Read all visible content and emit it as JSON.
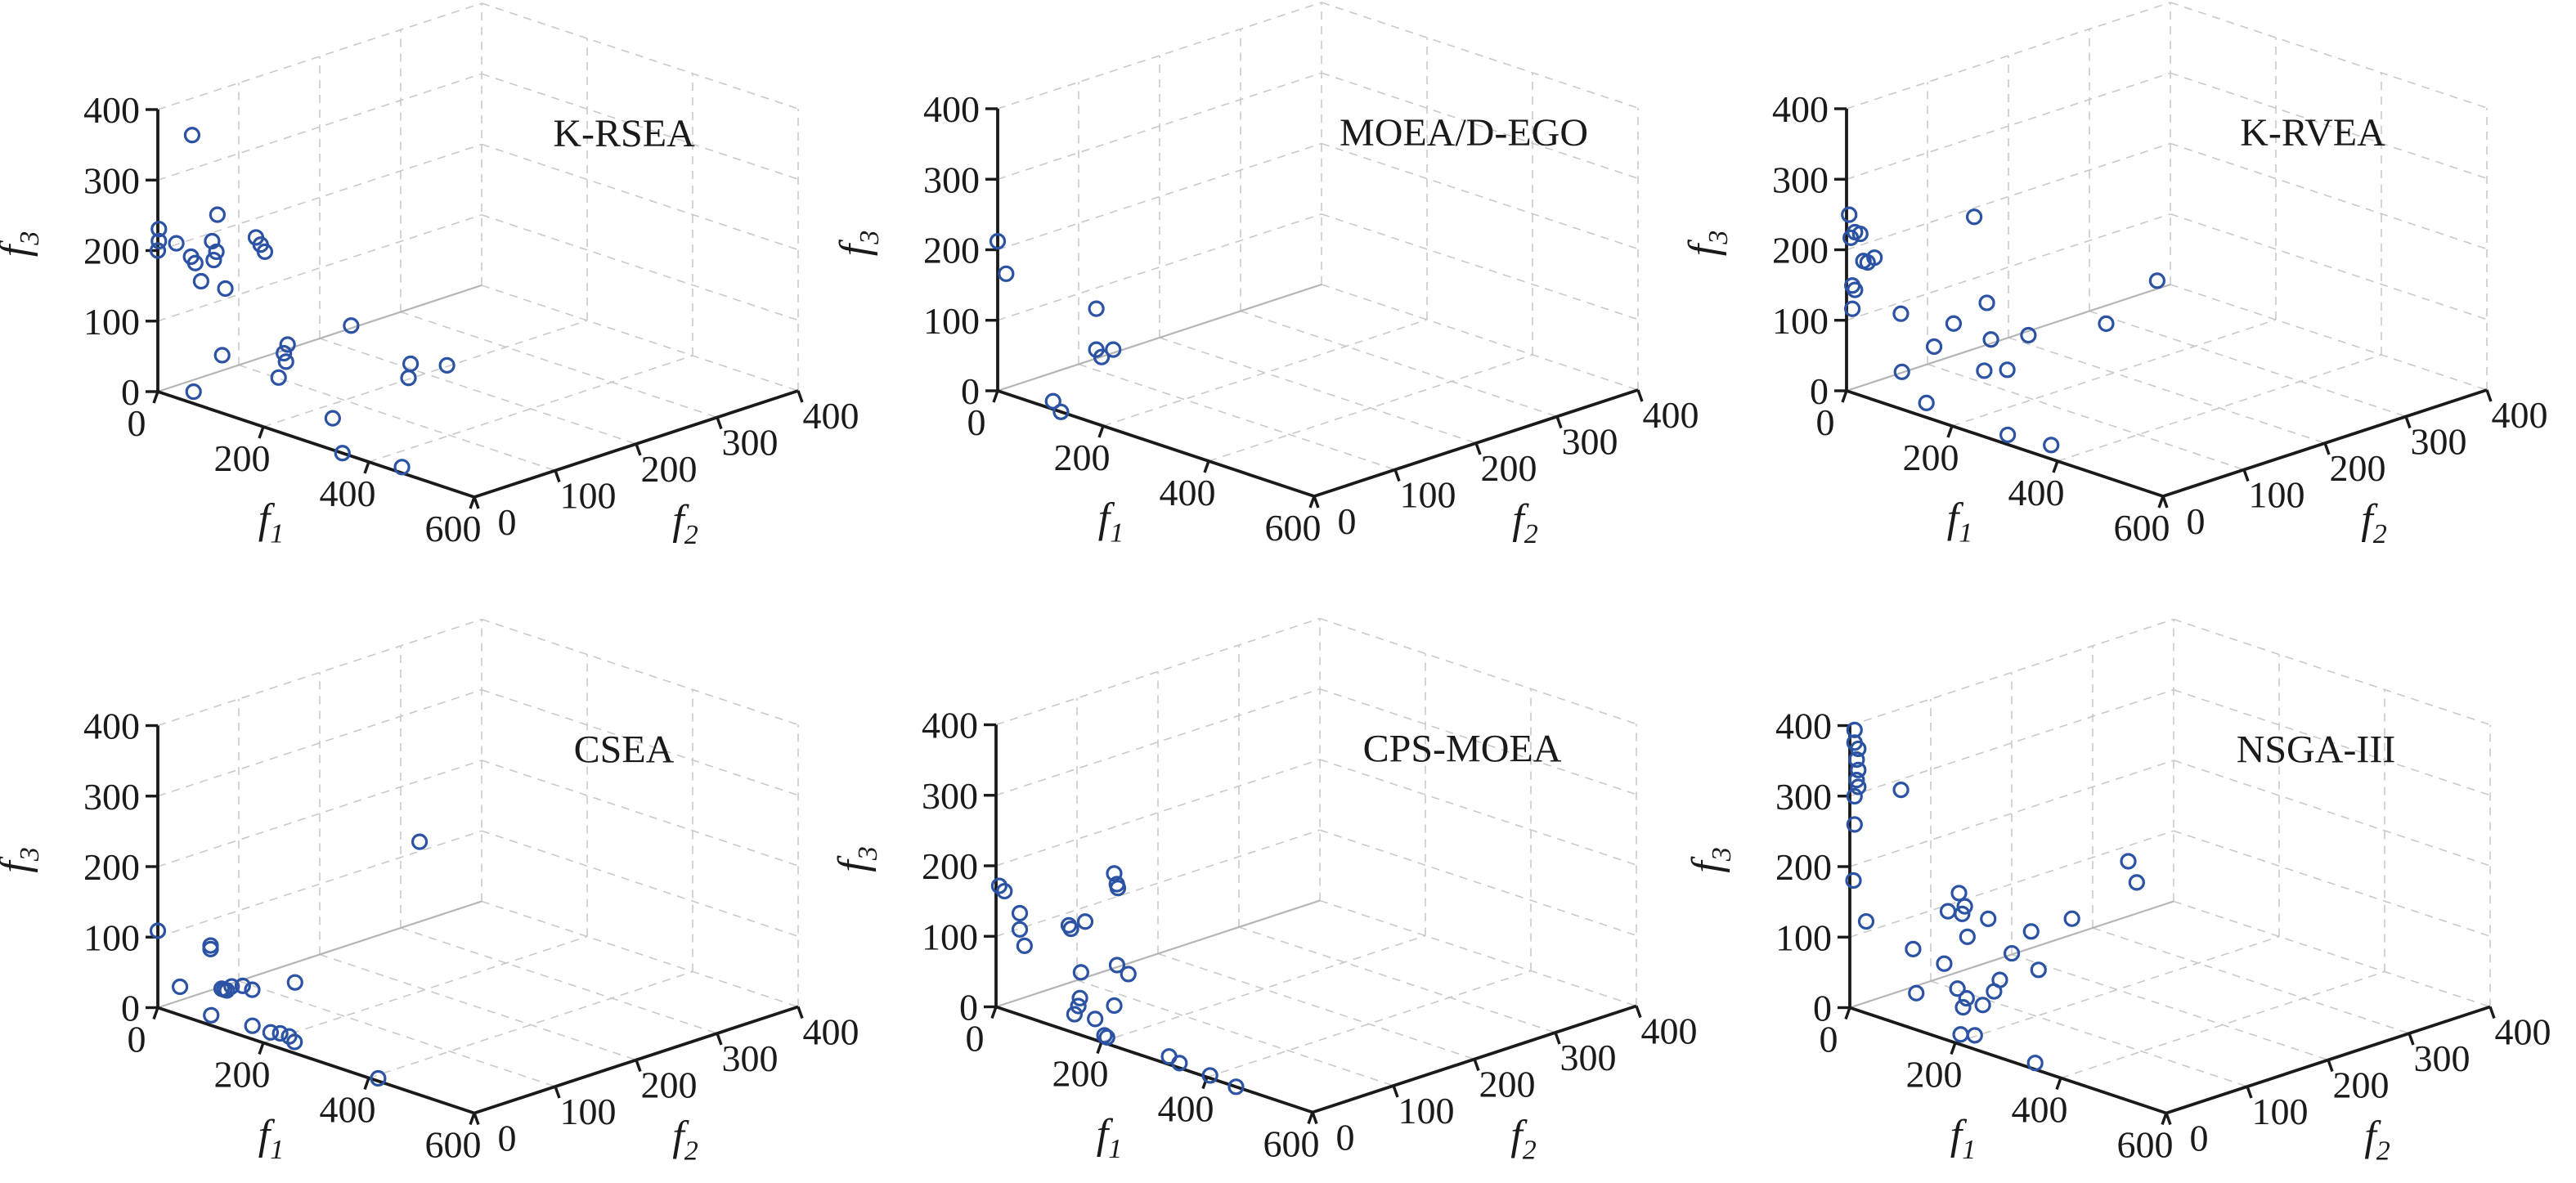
{
  "figure": {
    "background": "#ffffff"
  },
  "chart_data": {
    "type": "scatter",
    "subtype": "scatter3d-grid",
    "axes": {
      "f1": {
        "label_base": "f",
        "label_sub": "1",
        "range": [
          0,
          600
        ],
        "ticks": [
          0,
          200,
          400,
          600
        ]
      },
      "f2": {
        "label_base": "f",
        "label_sub": "2",
        "range": [
          0,
          400
        ],
        "ticks": [
          0,
          100,
          200,
          300,
          400
        ]
      },
      "f3": {
        "label_base": "f",
        "label_sub": "3",
        "range": [
          0,
          400
        ],
        "ticks": [
          0,
          100,
          200,
          300,
          400
        ]
      }
    },
    "subplots": [
      {
        "title": "K-RSEA",
        "points": [
          [
            65,
            0,
            380
          ],
          [
            113,
            0,
            279
          ],
          [
            2,
            0,
            231
          ],
          [
            2,
            0,
            214
          ],
          [
            0,
            0,
            200
          ],
          [
            35,
            0,
            219
          ],
          [
            63,
            0,
            207
          ],
          [
            71,
            0,
            200
          ],
          [
            103,
            0,
            239
          ],
          [
            111,
            0,
            226
          ],
          [
            106,
            0,
            213
          ],
          [
            186,
            0,
            265
          ],
          [
            195,
            0,
            257
          ],
          [
            203,
            0,
            249
          ],
          [
            82,
            0,
            177
          ],
          [
            128,
            0,
            178
          ],
          [
            213,
            100,
            109
          ],
          [
            246,
            0,
            128
          ],
          [
            239,
            0,
            114
          ],
          [
            243,
            0,
            103
          ],
          [
            229,
            0,
            77
          ],
          [
            122,
            0,
            82
          ],
          [
            249,
            150,
            45
          ],
          [
            245,
            150,
            24
          ],
          [
            318,
            150,
            60
          ],
          [
            34,
            22,
            0
          ],
          [
            241,
            59,
            0
          ],
          [
            350,
            0,
            0
          ],
          [
            446,
            11,
            0
          ]
        ]
      },
      {
        "title": "MOEA/D-EGO",
        "points": [
          [
            0,
            0,
            212
          ],
          [
            16,
            0,
            170
          ],
          [
            187,
            0,
            163
          ],
          [
            187,
            0,
            105
          ],
          [
            197,
            0,
            97
          ],
          [
            219,
            0,
            113
          ],
          [
            82,
            15,
            0
          ],
          [
            120,
            0,
            0
          ]
        ]
      },
      {
        "title": "K-RVEA",
        "points": [
          [
            5,
            0,
            251
          ],
          [
            16,
            0,
            229
          ],
          [
            26,
            0,
            229
          ],
          [
            8,
            0,
            219
          ],
          [
            32,
            0,
            192
          ],
          [
            53,
            0,
            202
          ],
          [
            40,
            0,
            192
          ],
          [
            11,
            0,
            152
          ],
          [
            16,
            0,
            147
          ],
          [
            11,
            0,
            119
          ],
          [
            103,
            0,
            135
          ],
          [
            242,
            0,
            307
          ],
          [
            266,
            0,
            191
          ],
          [
            203,
            0,
            146
          ],
          [
            166,
            0,
            104
          ],
          [
            197,
            50,
            103
          ],
          [
            222,
            80,
            104
          ],
          [
            105,
            0,
            53
          ],
          [
            169,
            60,
            48
          ],
          [
            182,
            80,
            45
          ],
          [
            262,
            150,
            104
          ],
          [
            282,
            200,
            151
          ],
          [
            110,
            27,
            0
          ],
          [
            278,
            18,
            0
          ],
          [
            348,
            26,
            0
          ]
        ]
      },
      {
        "title": "CSEA",
        "points": [
          [
            0,
            0,
            109
          ],
          [
            100,
            0,
            113
          ],
          [
            100,
            0,
            108
          ],
          [
            42,
            0,
            40
          ],
          [
            121,
            0,
            57
          ],
          [
            126,
            0,
            57
          ],
          [
            131,
            0,
            57
          ],
          [
            140,
            0,
            65
          ],
          [
            161,
            0,
            71
          ],
          [
            179,
            0,
            70
          ],
          [
            168,
            60,
            55
          ],
          [
            72,
            19,
            0
          ],
          [
            141,
            25,
            0
          ],
          [
            177,
            24,
            0
          ],
          [
            189,
            28,
            0
          ],
          [
            206,
            28,
            0
          ],
          [
            227,
            21,
            0
          ],
          [
            410,
            5,
            0
          ],
          [
            266,
            150,
            245
          ]
        ]
      },
      {
        "title": "CPS-MOEA",
        "points": [
          [
            6,
            0,
            173
          ],
          [
            16,
            0,
            168
          ],
          [
            45,
            0,
            144
          ],
          [
            45,
            0,
            121
          ],
          [
            54,
            0,
            100
          ],
          [
            138,
            0,
            150
          ],
          [
            142,
            0,
            146
          ],
          [
            169,
            0,
            163
          ],
          [
            224,
            0,
            245
          ],
          [
            229,
            0,
            231
          ],
          [
            231,
            0,
            226
          ],
          [
            161,
            0,
            89
          ],
          [
            168,
            40,
            86
          ],
          [
            174,
            50,
            71
          ],
          [
            159,
            0,
            52
          ],
          [
            156,
            0,
            40
          ],
          [
            95,
            35,
            0
          ],
          [
            132,
            60,
            12
          ],
          [
            128,
            39,
            0
          ],
          [
            184,
            14,
            0
          ],
          [
            192,
            12,
            0
          ],
          [
            305,
            15,
            0
          ],
          [
            334,
            9,
            0
          ],
          [
            398,
            5,
            0
          ],
          [
            455,
            0,
            0
          ]
        ]
      },
      {
        "title": "NSGA-III",
        "points": [
          [
            9,
            0,
            396
          ],
          [
            9,
            0,
            378
          ],
          [
            16,
            0,
            371
          ],
          [
            13,
            0,
            355
          ],
          [
            16,
            0,
            341
          ],
          [
            13,
            0,
            326
          ],
          [
            16,
            0,
            317
          ],
          [
            9,
            0,
            302
          ],
          [
            9,
            0,
            262
          ],
          [
            97,
            0,
            333
          ],
          [
            7,
            0,
            182
          ],
          [
            31,
            0,
            130
          ],
          [
            120,
            0,
            113
          ],
          [
            179,
            0,
            107
          ],
          [
            207,
            0,
            214
          ],
          [
            218,
            0,
            198
          ],
          [
            213,
            0,
            186
          ],
          [
            186,
            0,
            183
          ],
          [
            201,
            40,
            161
          ],
          [
            223,
            0,
            156
          ],
          [
            221,
            80,
            133
          ],
          [
            215,
            60,
            108
          ],
          [
            235,
            80,
            82
          ],
          [
            237,
            120,
            140
          ],
          [
            267,
            170,
            210
          ],
          [
            283,
            170,
            184
          ],
          [
            126,
            0,
            52
          ],
          [
            158,
            30,
            55
          ],
          [
            160,
            40,
            38
          ],
          [
            138,
            50,
            16
          ],
          [
            160,
            60,
            21
          ],
          [
            166,
            70,
            38
          ],
          [
            177,
            70,
            57
          ],
          [
            181,
            19,
            0
          ],
          [
            197,
            26,
            0
          ],
          [
            333,
            12,
            0
          ]
        ]
      }
    ],
    "layout": {
      "rows": 2,
      "cols": 3,
      "subplot_w": 1050,
      "subplot_h": 723.5,
      "origins": [
        [
          193,
          479
        ],
        [
          170,
          478
        ],
        [
          158,
          478
        ],
        [
          193,
          509
        ],
        [
          168,
          508
        ],
        [
          162,
          509
        ]
      ],
      "unit_vectors": {
        "f1": [
          0.645,
          0.215
        ],
        "f2": [
          0.99,
          -0.325
        ],
        "f3": [
          0,
          -0.8625
        ]
      },
      "grid_on": true,
      "legend": "none"
    },
    "style": {
      "marker_color": "#2b52a3",
      "marker_radius": 8.5,
      "marker_stroke": 3.2,
      "axis_color": "#1a1a1a",
      "grid_color": "#c9c9c9",
      "edge_color": "#b5b5b5",
      "grid_dash": "10 8",
      "font_size_ticks": 46,
      "font_size_title": 48,
      "font_size_axis_label": 52
    }
  }
}
